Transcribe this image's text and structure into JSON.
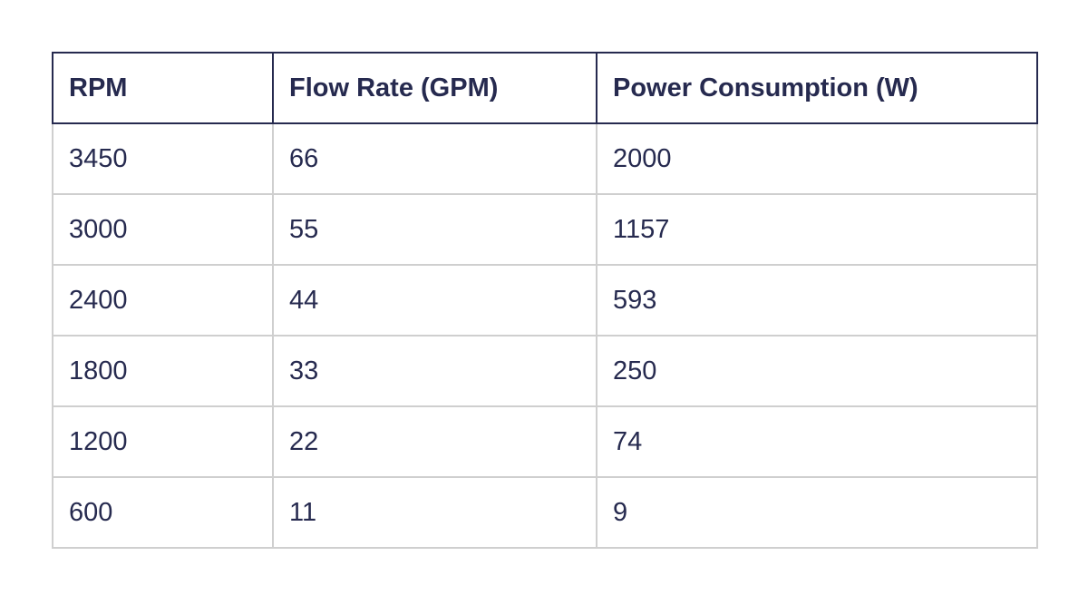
{
  "chart_data": {
    "type": "table",
    "columns": [
      "RPM",
      "Flow Rate (GPM)",
      "Power Consumption (W)"
    ],
    "rows": [
      [
        "3450",
        "66",
        "2000"
      ],
      [
        "3000",
        "55",
        "1157"
      ],
      [
        "2400",
        "44",
        "593"
      ],
      [
        "1800",
        "33",
        "250"
      ],
      [
        "1200",
        "22",
        "74"
      ],
      [
        "600",
        "11",
        "9"
      ]
    ]
  },
  "colors": {
    "text": "#262a4f",
    "header_border": "#262a4f",
    "grid": "#cfcfcf",
    "background": "#ffffff"
  }
}
